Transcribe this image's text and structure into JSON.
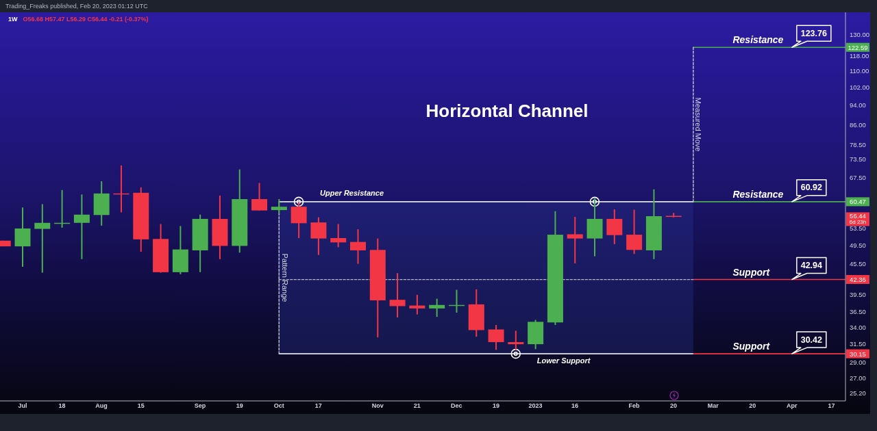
{
  "chart_data": {
    "type": "candlestick",
    "title": "Horizontal Channel",
    "annotations": [
      "Trading_Freaks published, Feb 20, 2023 01:12 UTC",
      "1W",
      "O56.68 H57.47 L56.29 C56.44 -0.21 (-0.37%)",
      {
        "text": "Resistance",
        "x": "2023-03-13",
        "y": 122.59
      },
      {
        "text": "123.76",
        "x": "2023-04-03",
        "y": 122.59
      },
      {
        "text": "Resistance",
        "x": "2023-03-13",
        "y": 60.47
      },
      {
        "text": "60.92",
        "x": "2023-04-03",
        "y": 60.47
      },
      {
        "text": "Support",
        "x": "2023-03-13",
        "y": 42.36
      },
      {
        "text": "42.94",
        "x": "2023-04-03",
        "y": 42.36
      },
      {
        "text": "Support",
        "x": "2023-03-13",
        "y": 30.15
      },
      {
        "text": "30.42",
        "x": "2023-04-03",
        "y": 30.15
      },
      "56.44",
      "6d 23h"
    ],
    "x": [
      "2022-06-27",
      "2022-07-04",
      "2022-07-11",
      "2022-07-18",
      "2022-07-25",
      "2022-08-01",
      "2022-08-08",
      "2022-08-15",
      "2022-08-22",
      "2022-08-29",
      "2022-09-05",
      "2022-09-12",
      "2022-09-19",
      "2022-09-26",
      "2022-10-03",
      "2022-10-10",
      "2022-10-17",
      "2022-10-24",
      "2022-10-31",
      "2022-11-07",
      "2022-11-14",
      "2022-11-21",
      "2022-11-28",
      "2022-12-05",
      "2022-12-12",
      "2022-12-19",
      "2022-12-26",
      "2023-01-02",
      "2023-01-09",
      "2023-01-16",
      "2023-01-23",
      "2023-01-30",
      "2023-02-06",
      "2023-02-13",
      "2023-02-20"
    ],
    "ohlc": [
      [
        50.6,
        50.6,
        49.3,
        49.3
      ],
      [
        49.3,
        58.9,
        44.9,
        53.5
      ],
      [
        53.4,
        59.8,
        43.7,
        54.9
      ],
      [
        54.8,
        63.8,
        53.7,
        54.9
      ],
      [
        54.9,
        62.5,
        46.5,
        57.0
      ],
      [
        56.9,
        66.4,
        54.2,
        62.8
      ],
      [
        62.8,
        71.4,
        57.6,
        62.7
      ],
      [
        63.0,
        64.6,
        48.1,
        50.9
      ],
      [
        51.0,
        54.6,
        43.7,
        43.8
      ],
      [
        43.8,
        54.1,
        43.4,
        48.6
      ],
      [
        48.4,
        57.0,
        43.8,
        55.9
      ],
      [
        55.9,
        62.2,
        46.5,
        49.4
      ],
      [
        49.4,
        70.1,
        47.9,
        61.2
      ],
      [
        61.2,
        65.9,
        58.1,
        58.1
      ],
      [
        58.2,
        61.2,
        57.2,
        59.1
      ],
      [
        59.1,
        60.4,
        51.2,
        54.8
      ],
      [
        55.0,
        56.3,
        47.4,
        51.1
      ],
      [
        51.2,
        54.6,
        49.1,
        50.2
      ],
      [
        50.3,
        53.3,
        45.5,
        48.4
      ],
      [
        48.5,
        51.1,
        32.5,
        38.5
      ],
      [
        38.6,
        43.6,
        35.6,
        37.5
      ],
      [
        37.6,
        39.5,
        36.1,
        37.1
      ],
      [
        37.1,
        38.8,
        35.7,
        37.7
      ],
      [
        37.6,
        40.4,
        36.4,
        37.7
      ],
      [
        37.8,
        40.5,
        32.6,
        33.6
      ],
      [
        33.7,
        34.4,
        30.7,
        31.8
      ],
      [
        31.8,
        33.5,
        30.7,
        31.5
      ],
      [
        31.5,
        35.2,
        30.8,
        34.9
      ],
      [
        34.8,
        57.9,
        34.4,
        52.0
      ],
      [
        52.1,
        56.4,
        45.6,
        51.1
      ],
      [
        51.1,
        61.5,
        47.1,
        55.9
      ],
      [
        55.9,
        58.4,
        49.8,
        51.9
      ],
      [
        52.0,
        58.3,
        47.6,
        48.5
      ],
      [
        48.4,
        64.0,
        46.5,
        56.6
      ],
      [
        56.68,
        57.47,
        56.29,
        56.44
      ]
    ],
    "colors": [
      "#f23645",
      "#4caf50",
      "#4caf50",
      "#4caf50",
      "#4caf50",
      "#4caf50",
      "#f23645",
      "#f23645",
      "#f23645",
      "#4caf50",
      "#4caf50",
      "#f23645",
      "#4caf50",
      "#f23645",
      "#4caf50",
      "#f23645",
      "#f23645",
      "#f23645",
      "#f23645",
      "#f23645",
      "#f23645",
      "#f23645",
      "#4caf50",
      "#4caf50",
      "#f23645",
      "#f23645",
      "#f23645",
      "#4caf50",
      "#4caf50",
      "#f23645",
      "#4caf50",
      "#f23645",
      "#f23645",
      "#4caf50",
      "#f23645"
    ],
    "series": [
      {
        "type": "line",
        "name": "Upper Resistance",
        "color": "#e0e3eb",
        "x": [
          "2022-10-03",
          "2023-02-27"
        ],
        "values": [
          60.47,
          60.47
        ]
      },
      {
        "type": "line",
        "name": "Lower Support",
        "color": "#e0e3eb",
        "x": [
          "2022-10-03",
          "2023-02-27"
        ],
        "values": [
          30.15,
          30.15
        ]
      },
      {
        "type": "line",
        "color": "#b2b5be",
        "line_style": "dashed",
        "x": [
          "2022-10-03",
          "2023-02-27"
        ],
        "values": [
          42.36,
          42.36
        ]
      },
      {
        "type": "line",
        "color": "#4caf50",
        "x": [
          "2023-02-27",
          "2023-04-22"
        ],
        "values": [
          122.59,
          122.59
        ],
        "value_labels": [
          null,
          "122.59"
        ]
      },
      {
        "type": "line",
        "color": "#4caf50",
        "x": [
          "2023-02-27",
          "2023-04-22"
        ],
        "values": [
          60.47,
          60.47
        ],
        "value_labels": [
          null,
          "60.47"
        ]
      },
      {
        "type": "line",
        "color": "#f23645",
        "x": [
          "2023-02-27",
          "2023-04-22"
        ],
        "values": [
          42.36,
          42.36
        ],
        "value_labels": [
          null,
          "42.36"
        ]
      },
      {
        "type": "line",
        "color": "#f23645",
        "x": [
          "2023-02-27",
          "2023-04-22"
        ],
        "values": [
          30.15,
          30.15
        ],
        "value_labels": [
          null,
          "30.15"
        ]
      },
      {
        "type": "line",
        "name": "Pattern Range",
        "color": "#d1d4dc",
        "line_style": "dashed",
        "x": [
          "2022-10-03",
          "2022-10-03"
        ],
        "values": [
          30.15,
          60.47
        ]
      },
      {
        "type": "line",
        "name": "Measured Move",
        "color": "#d1d4dc",
        "line_style": "dashed",
        "x": [
          "2023-02-27",
          "2023-02-27"
        ],
        "values": [
          122.59,
          60.47
        ]
      },
      {
        "type": "scatter",
        "color": "#ffffff",
        "marker": "circle",
        "x": [
          "2022-10-10",
          "2022-12-26",
          "2023-01-23"
        ],
        "values": [
          60.47,
          30.15,
          60.47
        ]
      }
    ],
    "bands": [
      {
        "axis": "y",
        "from": 30.15,
        "to": 60.47,
        "color": "#283593"
      }
    ],
    "xlim": [
      "2022-06-26",
      "2023-04-22"
    ],
    "xticks": [
      {
        "value": "2022-07-04",
        "label": "Jul"
      },
      {
        "value": "2022-07-18",
        "label": "18"
      },
      {
        "value": "2022-08-01",
        "label": "Aug"
      },
      {
        "value": "2022-08-15",
        "label": "15"
      },
      {
        "value": "2022-09-05",
        "label": "Sep"
      },
      {
        "value": "2022-09-19",
        "label": "19"
      },
      {
        "value": "2022-10-03",
        "label": "Oct"
      },
      {
        "value": "2022-10-17",
        "label": "17"
      },
      {
        "value": "2022-11-07",
        "label": "Nov"
      },
      {
        "value": "2022-11-21",
        "label": "21"
      },
      {
        "value": "2022-12-05",
        "label": "Dec"
      },
      {
        "value": "2022-12-19",
        "label": "19"
      },
      {
        "value": "2023-01-02",
        "label": "2023"
      },
      {
        "value": "2023-01-16",
        "label": "16"
      },
      {
        "value": "2023-02-06",
        "label": "Feb"
      },
      {
        "value": "2023-02-20",
        "label": "20"
      },
      {
        "value": "2023-03-06",
        "label": "Mar"
      },
      {
        "value": "2023-03-20",
        "label": "20"
      },
      {
        "value": "2023-04-03",
        "label": "Apr"
      },
      {
        "value": "2023-04-17",
        "label": "17"
      }
    ],
    "ylim": [
      24.3,
      143.9
    ],
    "yticks": [
      {
        "value": 25.2,
        "label": "25.20"
      },
      {
        "value": 27,
        "label": "27.00"
      },
      {
        "value": 29,
        "label": "29.00"
      },
      {
        "value": 31.5,
        "label": "31.50"
      },
      {
        "value": 34,
        "label": "34.00"
      },
      {
        "value": 36.5,
        "label": "36.50"
      },
      {
        "value": 39.5,
        "label": "39.50"
      },
      {
        "value": 45.5,
        "label": "45.50"
      },
      {
        "value": 49.5,
        "label": "49.50"
      },
      {
        "value": 53.5,
        "label": "53.50"
      },
      {
        "value": 67.5,
        "label": "67.50"
      },
      {
        "value": 73.5,
        "label": "73.50"
      },
      {
        "value": 78.5,
        "label": "78.50"
      },
      {
        "value": 86,
        "label": "86.00"
      },
      {
        "value": 94,
        "label": "94.00"
      },
      {
        "value": 102,
        "label": "102.00"
      },
      {
        "value": 110,
        "label": "110.00"
      },
      {
        "value": 118,
        "label": "118.00"
      },
      {
        "value": 130,
        "label": "130.00"
      }
    ],
    "log": true
  }
}
